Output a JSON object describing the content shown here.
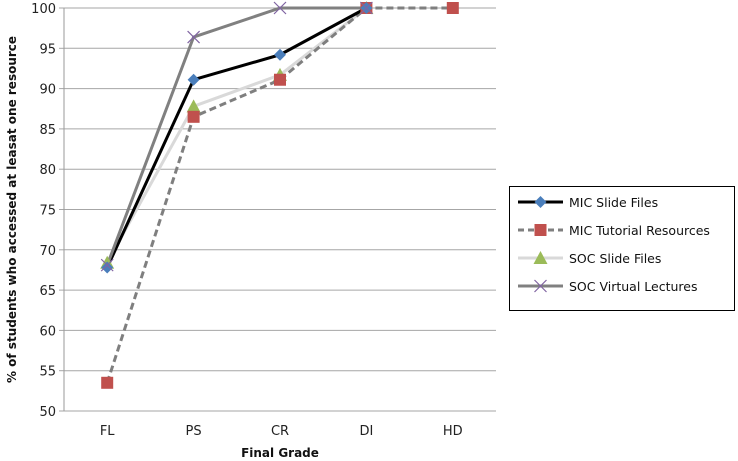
{
  "chart_data": {
    "type": "line",
    "title": "",
    "xlabel": "Final Grade",
    "ylabel": "% of students who accessed at leasat one resource",
    "categories": [
      "FL",
      "PS",
      "CR",
      "DI",
      "HD"
    ],
    "ylim": [
      50,
      100
    ],
    "yticks": [
      50,
      55,
      60,
      65,
      70,
      75,
      80,
      85,
      90,
      95,
      100
    ],
    "grid": true,
    "legend_position": "right",
    "series": [
      {
        "name": "MIC Slide Files",
        "values": [
          67.8,
          91.1,
          94.2,
          100,
          null
        ],
        "color": "#000000",
        "marker": "diamond",
        "marker_color": "#4a7ebb",
        "dash": "solid"
      },
      {
        "name": "MIC Tutorial Resources",
        "values": [
          53.5,
          86.5,
          91.1,
          100,
          100
        ],
        "color": "#7f7f7f",
        "marker": "square",
        "marker_color": "#c0504d",
        "dash": "dashed"
      },
      {
        "name": "SOC Slide Files",
        "values": [
          68.4,
          87.8,
          91.7,
          100,
          null
        ],
        "color": "#d9d9d9",
        "marker": "triangle",
        "marker_color": "#9bbb59",
        "dash": "solid"
      },
      {
        "name": "SOC Virtual Lectures",
        "values": [
          68.1,
          96.4,
          100,
          100,
          null
        ],
        "color": "#808080",
        "marker": "x",
        "marker_color": "#8064a2",
        "dash": "solid"
      }
    ]
  }
}
